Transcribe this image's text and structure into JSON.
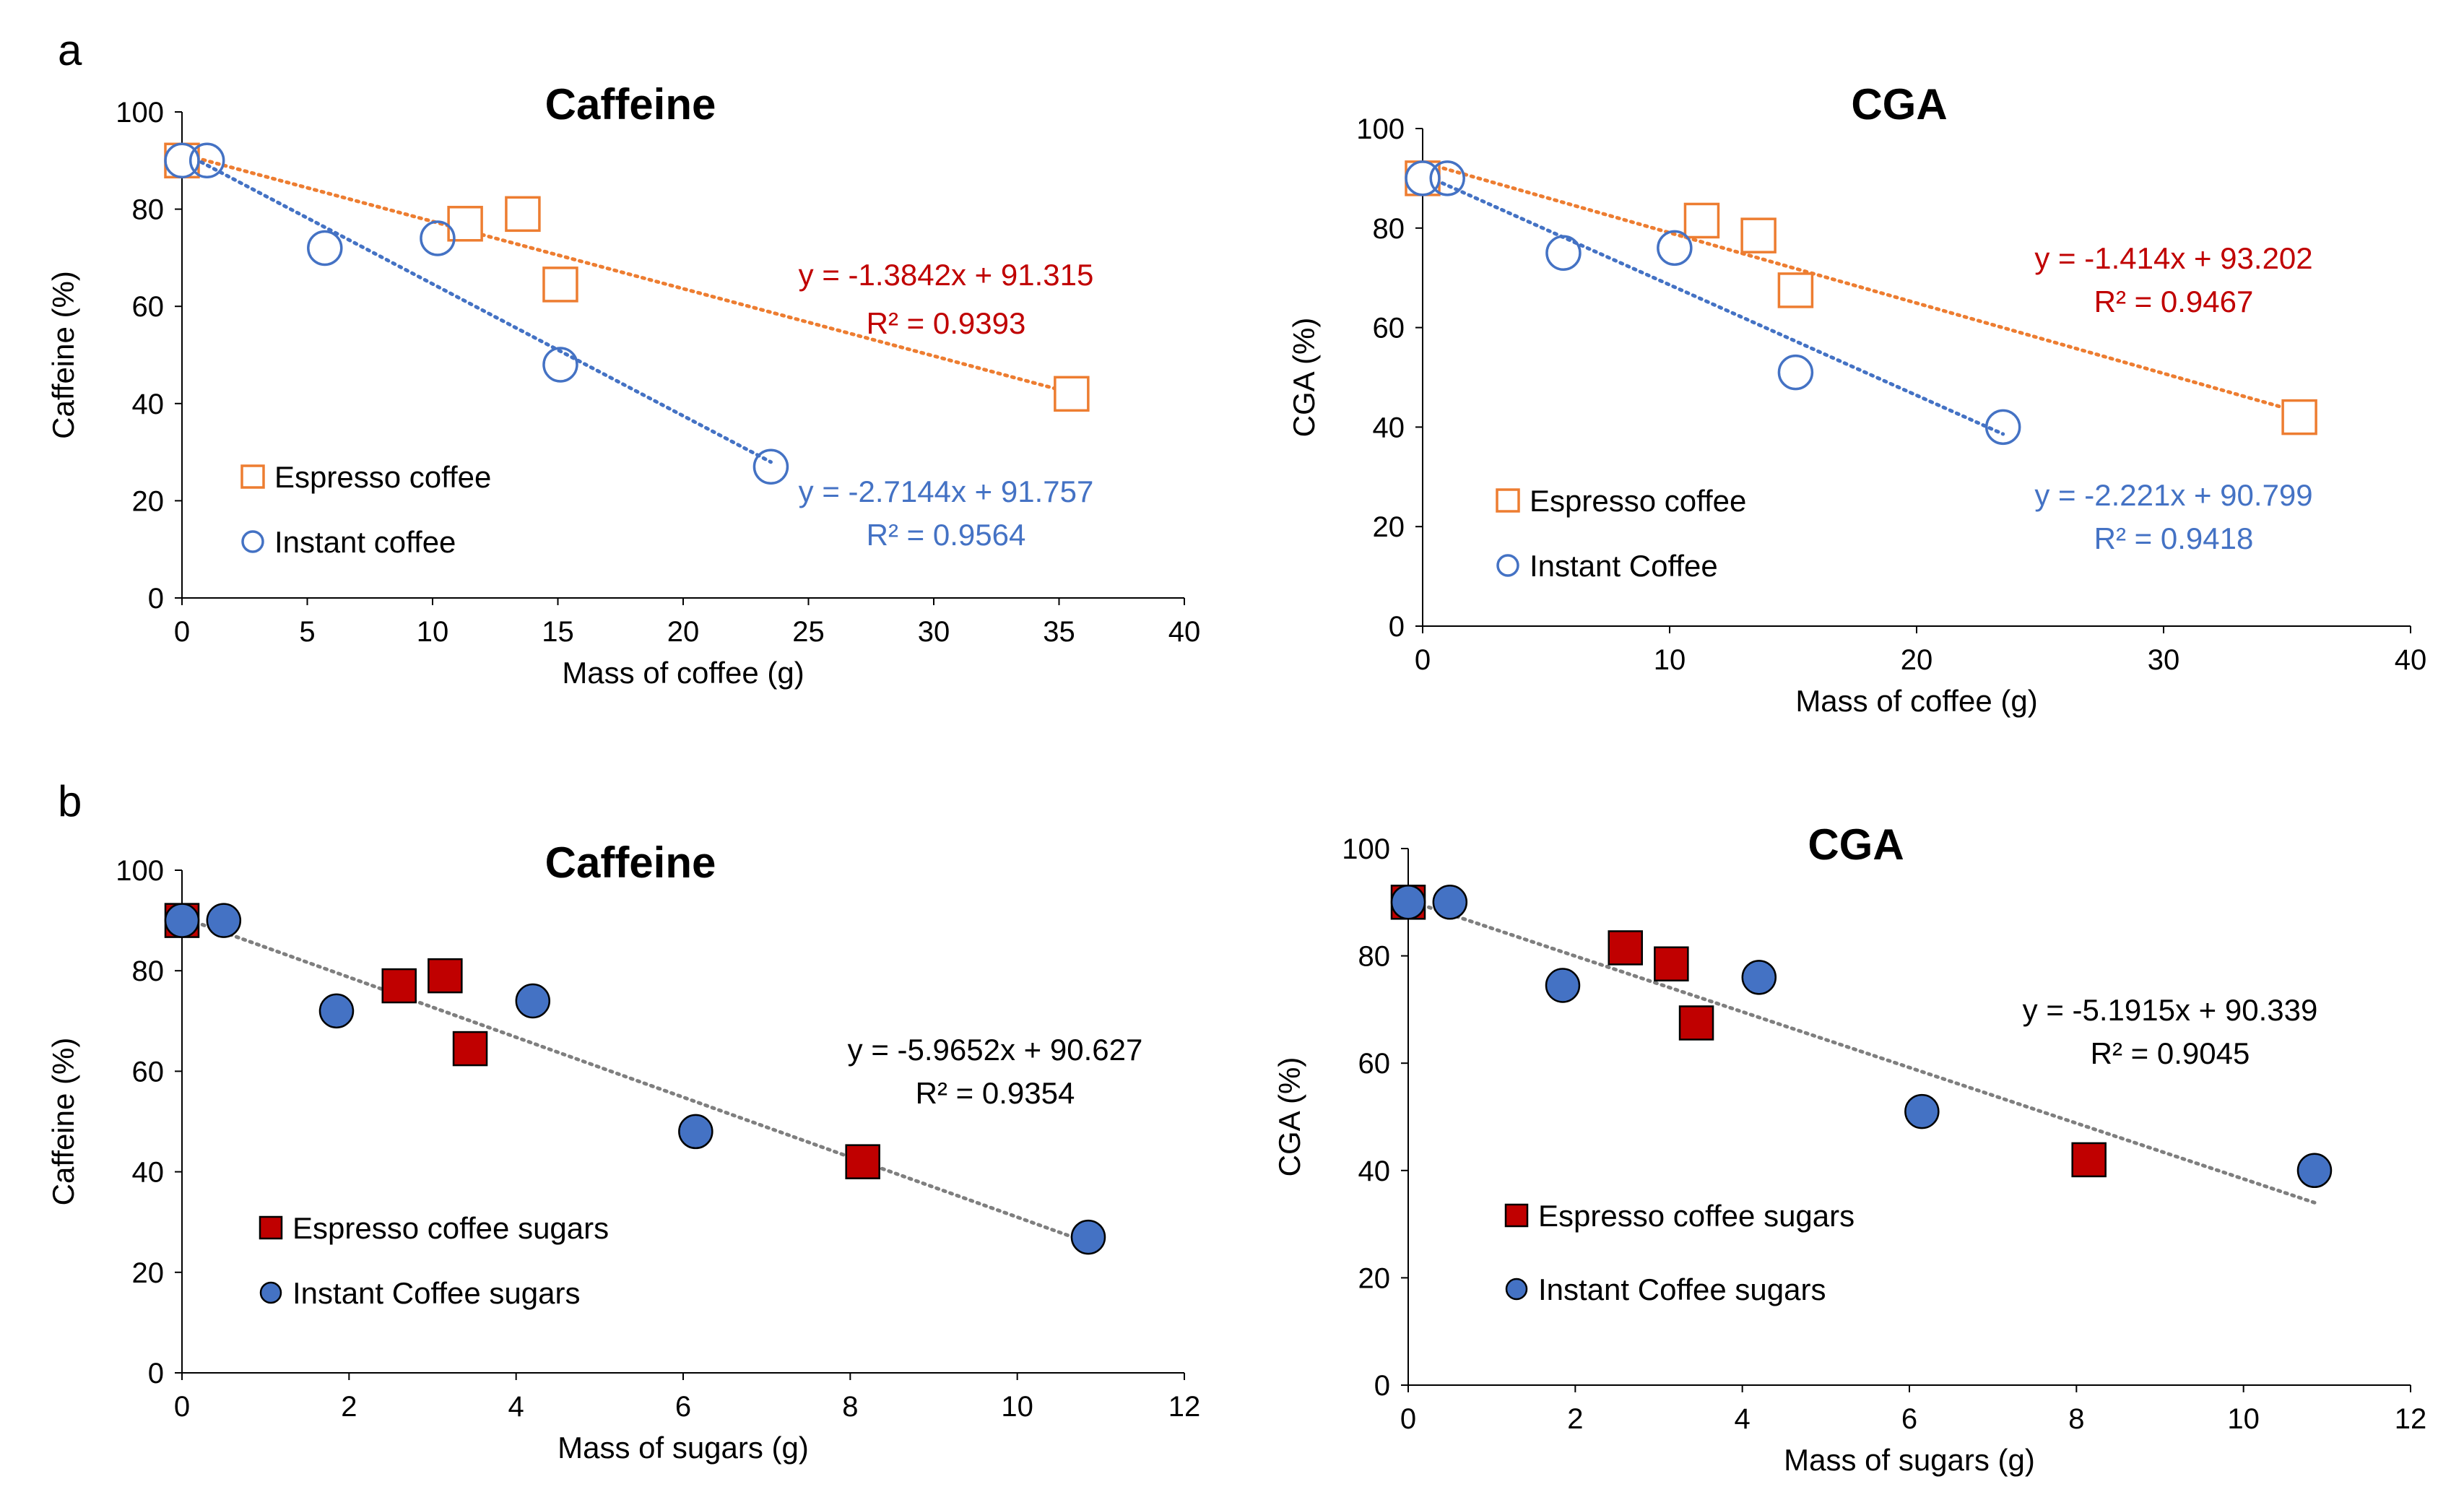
{
  "figure": {
    "panel_labels": [
      "a",
      "b"
    ]
  },
  "colors": {
    "espresso_open": "#ED7D31",
    "instant_open": "#4472C4",
    "espresso_eq": "#C00000",
    "instant_eq": "#4472C4",
    "espresso_fill": "#C00000",
    "instant_fill": "#4472C4",
    "combined_trend": "#7F7F7F",
    "axis": "#000000"
  },
  "chart_data": [
    {
      "id": "a-caffeine",
      "type": "scatter",
      "title": "Caffeine",
      "xlabel": "Mass of coffee (g)",
      "ylabel": "Caffeine (%)",
      "xlim": [
        0,
        40
      ],
      "ylim": [
        0,
        100
      ],
      "xticks": [
        0,
        5,
        10,
        15,
        20,
        25,
        30,
        35,
        40
      ],
      "yticks": [
        0,
        20,
        40,
        60,
        80,
        100
      ],
      "marker_style": "open",
      "legend_position": "bottom-left",
      "series": [
        {
          "name": "Espresso coffee",
          "marker": "square",
          "color_key": "espresso_open",
          "x": [
            0,
            11.3,
            13.6,
            15.1,
            35.5
          ],
          "y": [
            90,
            77,
            79,
            64.5,
            42
          ],
          "trend": {
            "slope": -1.3842,
            "intercept": 91.315,
            "x_range": [
              0,
              35.5
            ]
          },
          "equation": "y = -1.3842x + 91.315",
          "r2": "R² = 0.9393",
          "eq_color_key": "espresso_eq"
        },
        {
          "name": "Instant coffee",
          "marker": "circle",
          "color_key": "instant_open",
          "x": [
            0,
            1,
            5.7,
            10.2,
            15.1,
            23.5
          ],
          "y": [
            90,
            90,
            72,
            74,
            48,
            27
          ],
          "trend": {
            "slope": -2.7144,
            "intercept": 91.757,
            "x_range": [
              0,
              23.5
            ]
          },
          "equation": "y = -2.7144x + 91.757",
          "r2": "R² = 0.9564",
          "eq_color_key": "instant_eq"
        }
      ]
    },
    {
      "id": "a-cga",
      "type": "scatter",
      "title": "CGA",
      "xlabel": "Mass of coffee (g)",
      "ylabel": "CGA (%)",
      "xlim": [
        0,
        40
      ],
      "ylim": [
        0,
        100
      ],
      "xticks": [
        0,
        10,
        20,
        30,
        40
      ],
      "yticks": [
        0,
        20,
        40,
        60,
        80,
        100
      ],
      "marker_style": "open",
      "legend_position": "bottom-left",
      "series": [
        {
          "name": "Espresso coffee",
          "marker": "square",
          "color_key": "espresso_open",
          "x": [
            0,
            11.3,
            13.6,
            15.1,
            35.5
          ],
          "y": [
            90,
            81.5,
            78.5,
            67.5,
            42
          ],
          "trend": {
            "slope": -1.414,
            "intercept": 93.202,
            "x_range": [
              0,
              35.5
            ]
          },
          "equation": "y = -1.414x + 93.202",
          "r2": "R² = 0.9467",
          "eq_color_key": "espresso_eq"
        },
        {
          "name": "Instant Coffee",
          "marker": "circle",
          "color_key": "instant_open",
          "x": [
            0,
            1,
            5.7,
            10.2,
            15.1,
            23.5
          ],
          "y": [
            90,
            90,
            75,
            76,
            51,
            40
          ],
          "trend": {
            "slope": -2.221,
            "intercept": 90.799,
            "x_range": [
              0,
              23.5
            ]
          },
          "equation": "y = -2.221x + 90.799",
          "r2": "R² = 0.9418",
          "eq_color_key": "instant_eq"
        }
      ]
    },
    {
      "id": "b-caffeine",
      "type": "scatter",
      "title": "Caffeine",
      "xlabel": "Mass of sugars (g)",
      "ylabel": "Caffeine (%)",
      "xlim": [
        0,
        12
      ],
      "ylim": [
        0,
        100
      ],
      "xticks": [
        0,
        2,
        4,
        6,
        8,
        10,
        12
      ],
      "yticks": [
        0,
        20,
        40,
        60,
        80,
        100
      ],
      "marker_style": "filled",
      "legend_position": "bottom-left",
      "series": [
        {
          "name": "Espresso coffee sugars",
          "marker": "square",
          "color_key": "espresso_fill",
          "x": [
            0,
            2.6,
            3.15,
            3.45,
            8.15
          ],
          "y": [
            90,
            77,
            79,
            64.5,
            42
          ]
        },
        {
          "name": "Instant Coffee sugars",
          "marker": "circle",
          "color_key": "instant_fill",
          "x": [
            0,
            0.5,
            1.85,
            4.2,
            6.15,
            10.85
          ],
          "y": [
            90,
            90,
            72,
            74,
            48,
            27
          ]
        }
      ],
      "combined_trend": {
        "slope": -5.9652,
        "intercept": 90.627,
        "x_range": [
          0,
          10.85
        ],
        "equation": "y = -5.9652x + 90.627",
        "r2": "R² = 0.9354"
      }
    },
    {
      "id": "b-cga",
      "type": "scatter",
      "title": "CGA",
      "xlabel": "Mass of sugars (g)",
      "ylabel": "CGA (%)",
      "xlim": [
        0,
        12
      ],
      "ylim": [
        0,
        100
      ],
      "xticks": [
        0,
        2,
        4,
        6,
        8,
        10,
        12
      ],
      "yticks": [
        0,
        20,
        40,
        60,
        80,
        100
      ],
      "marker_style": "filled",
      "legend_position": "bottom-left",
      "series": [
        {
          "name": "Espresso coffee sugars",
          "marker": "square",
          "color_key": "espresso_fill",
          "x": [
            0,
            2.6,
            3.15,
            3.45,
            8.15
          ],
          "y": [
            90,
            81.5,
            78.5,
            67.5,
            42
          ]
        },
        {
          "name": "Instant Coffee sugars",
          "marker": "circle",
          "color_key": "instant_fill",
          "x": [
            0,
            0.5,
            1.85,
            4.2,
            6.15,
            10.85
          ],
          "y": [
            90,
            90,
            74.5,
            76,
            51,
            40
          ]
        }
      ],
      "combined_trend": {
        "slope": -5.1915,
        "intercept": 90.339,
        "x_range": [
          0,
          10.85
        ],
        "equation": "y = -5.1915x + 90.339",
        "r2": "R² = 0.9045"
      }
    }
  ]
}
